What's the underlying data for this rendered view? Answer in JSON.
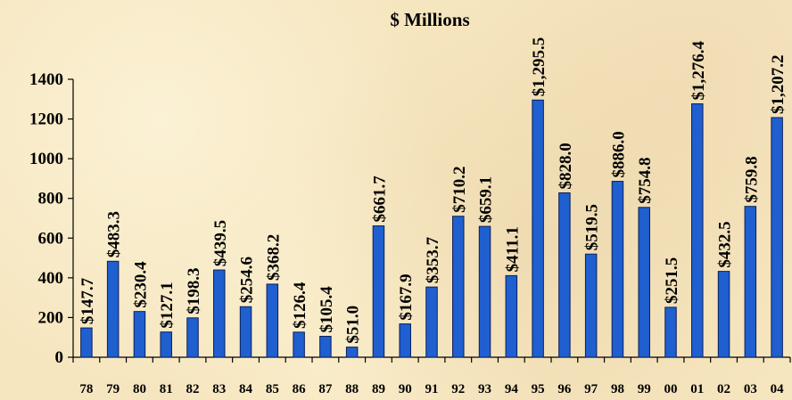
{
  "chart_data": {
    "type": "bar",
    "title": "$ Millions",
    "xlabel": "",
    "ylabel": "",
    "ylim": [
      0,
      1400
    ],
    "yticks": [
      0,
      200,
      400,
      600,
      800,
      1000,
      1200,
      1400
    ],
    "grid": false,
    "bar_color": "#1f5fcf",
    "categories": [
      "78",
      "79",
      "80",
      "81",
      "82",
      "83",
      "84",
      "85",
      "86",
      "87",
      "88",
      "89",
      "90",
      "91",
      "92",
      "93",
      "94",
      "95",
      "96",
      "97",
      "98",
      "99",
      "00",
      "01",
      "02",
      "03",
      "04"
    ],
    "values": [
      147.7,
      483.3,
      230.4,
      127.1,
      198.3,
      439.5,
      254.6,
      368.2,
      126.4,
      105.4,
      51.0,
      661.7,
      167.9,
      353.7,
      710.2,
      659.1,
      411.1,
      1295.5,
      828.0,
      519.5,
      886.0,
      754.8,
      251.5,
      1276.4,
      432.5,
      759.8,
      1207.2
    ],
    "data_labels": [
      "$147.7",
      "$483.3",
      "$230.4",
      "$127.1",
      "$198.3",
      "$439.5",
      "$254.6",
      "$368.2",
      "$126.4",
      "$105.4",
      "$51.0",
      "$661.7",
      "$167.9",
      "$353.7",
      "$710.2",
      "$659.1",
      "$411.1",
      "$1,295.5",
      "$828.0",
      "$519.5",
      "$886.0",
      "$754.8",
      "$251.5",
      "$1,276.4",
      "$432.5",
      "$759.8",
      "$1,207.2"
    ]
  }
}
